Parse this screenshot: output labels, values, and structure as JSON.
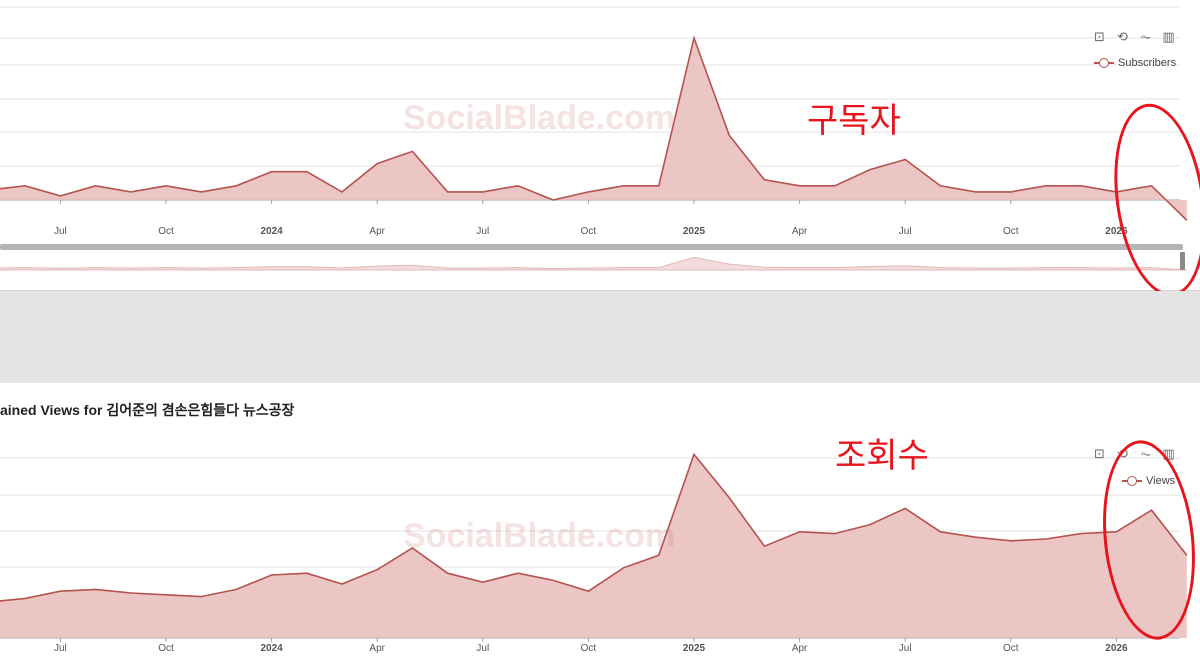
{
  "colors": {
    "series": "#b5534f",
    "area": "#e8bcbb",
    "annotation": "#e8141c",
    "grid": "#e3e3e3"
  },
  "watermark": "SocialBlade.com",
  "toolbox_icons": [
    "zoom-icon",
    "zoom-reset-icon",
    "line-chart-icon",
    "bar-chart-icon"
  ],
  "chart_data": [
    {
      "type": "area",
      "title": "",
      "legend": [
        "Subscribers"
      ],
      "legend_position": "top-right",
      "grid": true,
      "x_tick_labels": [
        "Jul",
        "Oct",
        "2024",
        "Apr",
        "Jul",
        "Oct",
        "2025",
        "Apr",
        "Jul",
        "Oct",
        "2026"
      ],
      "x": [
        "2023-05",
        "2023-06",
        "2023-07",
        "2023-08",
        "2023-09",
        "2023-10",
        "2023-11",
        "2023-12",
        "2024-01",
        "2024-02",
        "2024-03",
        "2024-04",
        "2024-05",
        "2024-06",
        "2024-07",
        "2024-08",
        "2024-09",
        "2024-10",
        "2024-11",
        "2024-12",
        "2025-01",
        "2025-02",
        "2025-03",
        "2025-04",
        "2025-05",
        "2025-06",
        "2025-07",
        "2025-08",
        "2025-09",
        "2025-10",
        "2025-11",
        "2025-12",
        "2026-01",
        "2026-02",
        "2026-03"
      ],
      "series": [
        {
          "name": "Subscribers",
          "values": [
            0.25,
            0.35,
            0.1,
            0.35,
            0.2,
            0.35,
            0.2,
            0.35,
            0.7,
            0.7,
            0.2,
            0.9,
            1.2,
            0.2,
            0.2,
            0.35,
            0.0,
            0.2,
            0.35,
            0.35,
            4.0,
            1.6,
            0.5,
            0.35,
            0.35,
            0.75,
            1.0,
            0.35,
            0.2,
            0.2,
            0.35,
            0.35,
            0.2,
            0.35,
            -0.5
          ]
        }
      ],
      "annotation": "구독자"
    },
    {
      "type": "area",
      "title": "Gained Views for 김어준의 겸손은힘들다 뉴스공장",
      "title_visible": "ained Views for 김어준의 겸손은힘들다 뉴스공장",
      "legend": [
        "Views"
      ],
      "legend_position": "top-right",
      "grid": true,
      "x_tick_labels": [
        "Jul",
        "Oct",
        "2024",
        "Apr",
        "Jul",
        "Oct",
        "2025",
        "Apr",
        "Jul",
        "Oct",
        "2026"
      ],
      "x": [
        "2023-05",
        "2023-06",
        "2023-07",
        "2023-08",
        "2023-09",
        "2023-10",
        "2023-11",
        "2023-12",
        "2024-01",
        "2024-02",
        "2024-03",
        "2024-04",
        "2024-05",
        "2024-06",
        "2024-07",
        "2024-08",
        "2024-09",
        "2024-10",
        "2024-11",
        "2024-12",
        "2025-01",
        "2025-02",
        "2025-03",
        "2025-04",
        "2025-05",
        "2025-06",
        "2025-07",
        "2025-08",
        "2025-09",
        "2025-10",
        "2025-11",
        "2025-12",
        "2026-01",
        "2026-02",
        "2026-03"
      ],
      "series": [
        {
          "name": "Views",
          "values": [
            1.0,
            1.1,
            1.3,
            1.35,
            1.25,
            1.2,
            1.15,
            1.35,
            1.75,
            1.8,
            1.5,
            1.9,
            2.5,
            1.8,
            1.55,
            1.8,
            1.6,
            1.3,
            1.95,
            2.3,
            5.1,
            3.9,
            2.55,
            2.95,
            2.9,
            3.15,
            3.6,
            2.95,
            2.8,
            2.7,
            2.75,
            2.9,
            2.95,
            3.55,
            2.3
          ]
        }
      ],
      "annotation": "조회수"
    }
  ]
}
